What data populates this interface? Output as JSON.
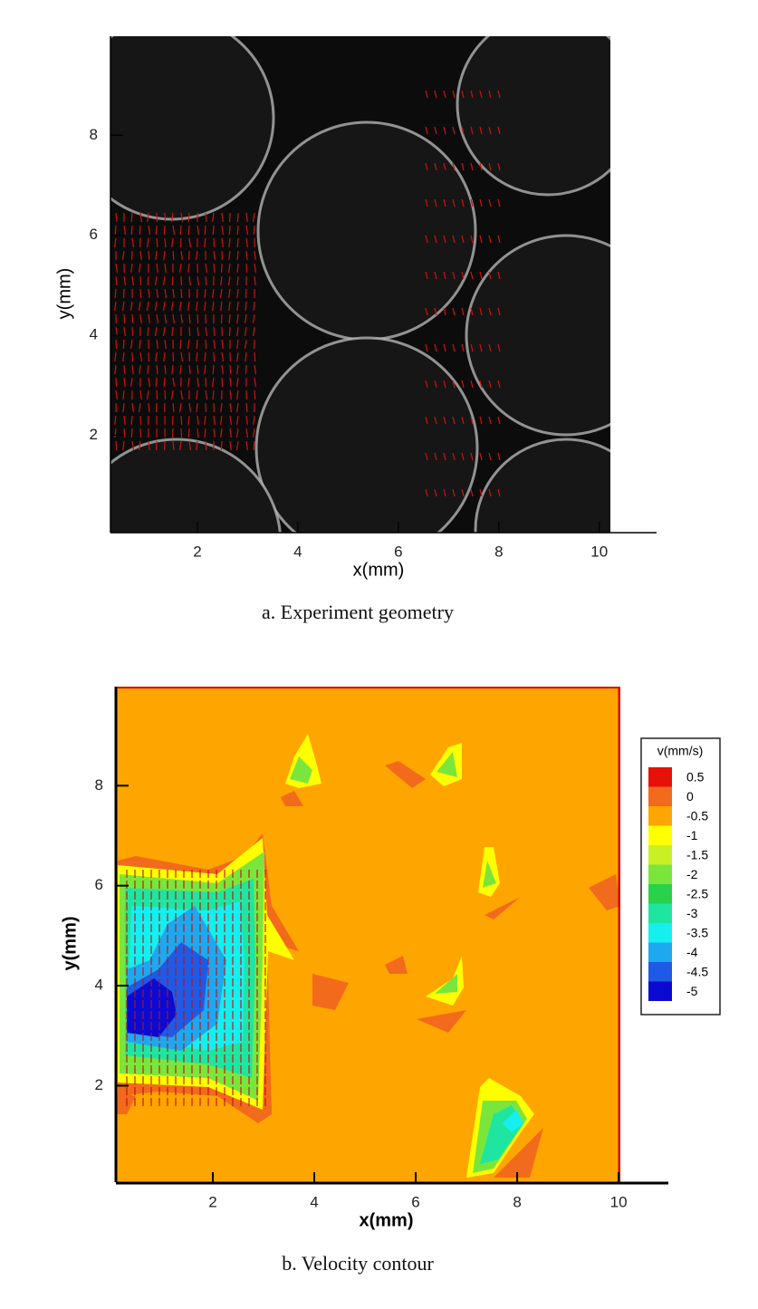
{
  "chart_data": [
    {
      "type": "image",
      "caption": "a. Experiment geometry",
      "x_label": "x(mm)",
      "y_label": "y(mm)",
      "xlim": [
        0.27,
        11.14
      ],
      "ylim": [
        0.05,
        9.98
      ],
      "xticks": [
        2,
        4,
        6,
        8,
        10
      ],
      "yticks": [
        2,
        4,
        6,
        8
      ]
    },
    {
      "type": "contour",
      "caption": "b. Velocity contour",
      "x_label": "x(mm)",
      "y_label": "y(mm)",
      "xlim": [
        0.09,
        10.98
      ],
      "ylim": [
        0.07,
        9.98
      ],
      "xticks": [
        2,
        4,
        6,
        8,
        10
      ],
      "yticks": [
        2,
        4,
        6,
        8
      ],
      "colorbar": {
        "title": "v(mm/s)",
        "levels": [
          0.5,
          0,
          -0.5,
          -1,
          -1.5,
          -2,
          -2.5,
          -3,
          -3.5,
          -4,
          -4.5,
          -5
        ],
        "colors": [
          "#e8100a",
          "#f26a1c",
          "#ffa500",
          "#ffff00",
          "#c8f024",
          "#7ae63c",
          "#28d24a",
          "#1ee6a0",
          "#14f0f0",
          "#1ea8f0",
          "#1e5ae6",
          "#0a0ad2"
        ]
      }
    }
  ]
}
